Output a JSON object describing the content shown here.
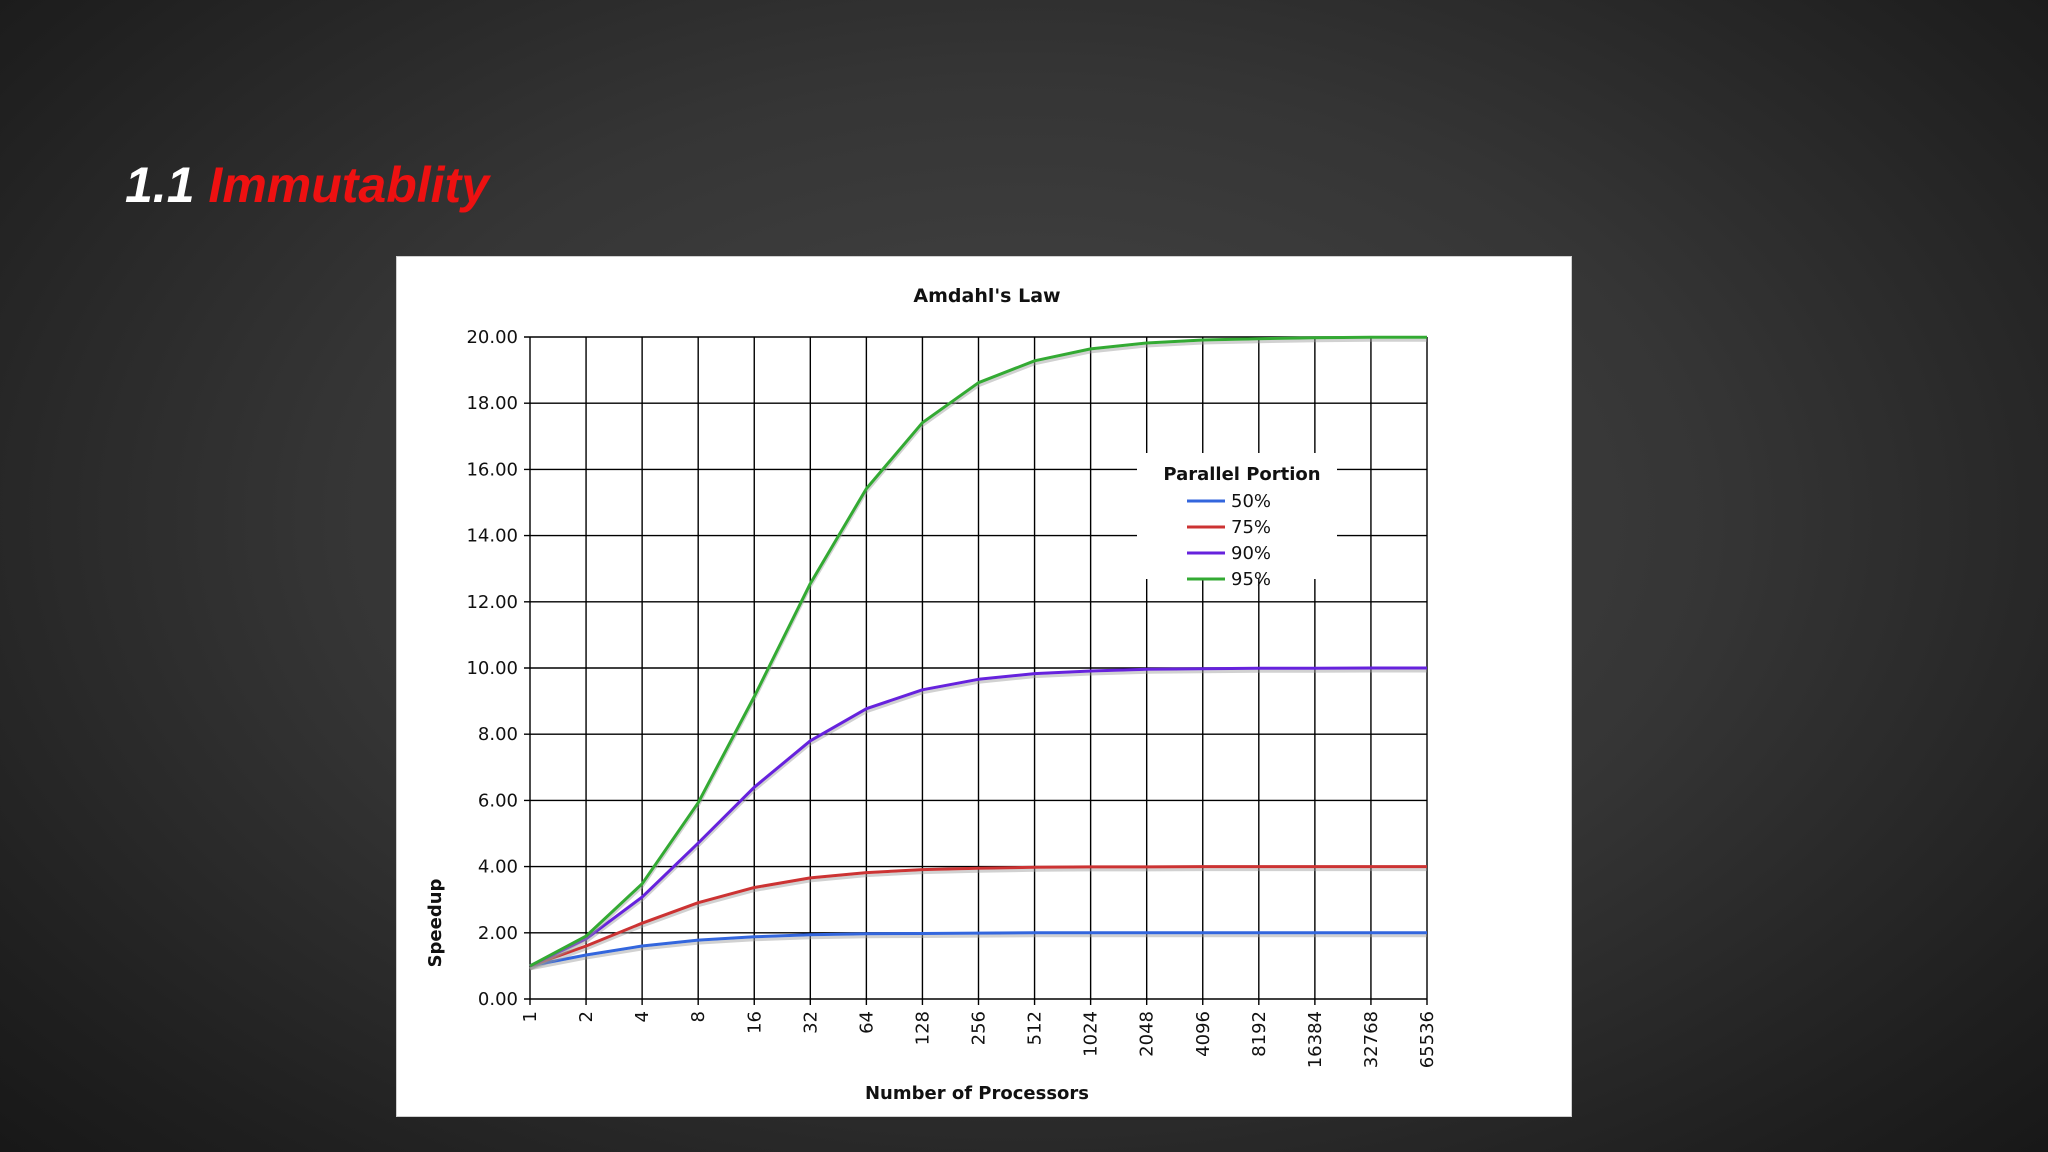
{
  "slide": {
    "title_number": "1.1",
    "title_word": "Immutablity"
  },
  "colors": {
    "title_number": "#ffffff",
    "title_word": "#ee1111",
    "series_50": "#3366dd",
    "series_75": "#cc3333",
    "series_90": "#6622dd",
    "series_95": "#33aa33"
  },
  "chart_data": {
    "type": "line",
    "title": "Amdahl's Law",
    "xlabel": "Number of Processors",
    "ylabel": "Speedup",
    "x_scale": "log2",
    "categories": [
      "1",
      "2",
      "4",
      "8",
      "16",
      "32",
      "64",
      "128",
      "256",
      "512",
      "1024",
      "2048",
      "4096",
      "8192",
      "16384",
      "32768",
      "65536"
    ],
    "ylim": [
      0,
      20
    ],
    "y_ticks": [
      "0.00",
      "2.00",
      "4.00",
      "6.00",
      "8.00",
      "10.00",
      "12.00",
      "14.00",
      "16.00",
      "18.00",
      "20.00"
    ],
    "grid": true,
    "legend": {
      "title": "Parallel Portion",
      "position": "upper-right"
    },
    "series": [
      {
        "name": "50%",
        "color": "#3366dd",
        "values": [
          1.0,
          1.33,
          1.6,
          1.78,
          1.88,
          1.94,
          1.97,
          1.98,
          1.99,
          2.0,
          2.0,
          2.0,
          2.0,
          2.0,
          2.0,
          2.0,
          2.0
        ]
      },
      {
        "name": "75%",
        "color": "#cc3333",
        "values": [
          1.0,
          1.6,
          2.29,
          2.91,
          3.37,
          3.66,
          3.82,
          3.91,
          3.95,
          3.98,
          3.99,
          3.99,
          4.0,
          4.0,
          4.0,
          4.0,
          4.0
        ]
      },
      {
        "name": "90%",
        "color": "#6622dd",
        "values": [
          1.0,
          1.82,
          3.08,
          4.71,
          6.4,
          7.8,
          8.77,
          9.34,
          9.66,
          9.83,
          9.91,
          9.96,
          9.98,
          9.99,
          9.99,
          10.0,
          10.0
        ]
      },
      {
        "name": "95%",
        "color": "#33aa33",
        "values": [
          1.0,
          1.9,
          3.48,
          5.93,
          9.14,
          12.55,
          15.42,
          17.41,
          18.62,
          19.28,
          19.64,
          19.82,
          19.91,
          19.95,
          19.98,
          19.99,
          19.99
        ]
      }
    ]
  }
}
